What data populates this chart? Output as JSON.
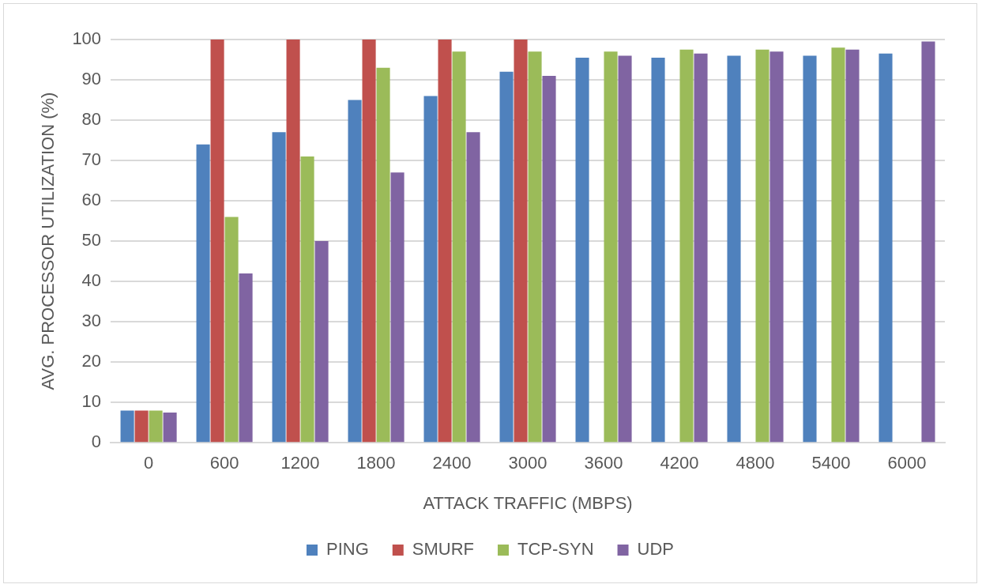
{
  "chart_data": {
    "type": "bar",
    "xlabel": "ATTACK TRAFFIC (MBPS)",
    "ylabel": "AVG. PROCESSOR UTILIZATION (%)",
    "categories": [
      "0",
      "600",
      "1200",
      "1800",
      "2400",
      "3000",
      "3600",
      "4200",
      "4800",
      "5400",
      "6000"
    ],
    "series": [
      {
        "name": "PING",
        "color": "#4f81bd",
        "values": [
          8,
          74,
          77,
          85,
          86,
          92,
          95.5,
          95.5,
          96,
          96,
          96.5
        ]
      },
      {
        "name": "SMURF",
        "color": "#c0504d",
        "values": [
          8,
          100,
          100,
          100,
          100,
          100,
          null,
          null,
          null,
          null,
          null
        ]
      },
      {
        "name": "TCP-SYN",
        "color": "#9bbb59",
        "values": [
          8,
          56,
          71,
          93,
          97,
          97,
          97,
          97.5,
          97.5,
          98,
          null
        ]
      },
      {
        "name": "UDP",
        "color": "#8064a2",
        "values": [
          7.5,
          42,
          50,
          67,
          77,
          91,
          96,
          96.5,
          97,
          97.5,
          99.5
        ]
      }
    ],
    "ylim": [
      0,
      100
    ],
    "yticks": [
      0,
      10,
      20,
      30,
      40,
      50,
      60,
      70,
      80,
      90,
      100
    ],
    "grid": "y",
    "legend": "bottom"
  }
}
